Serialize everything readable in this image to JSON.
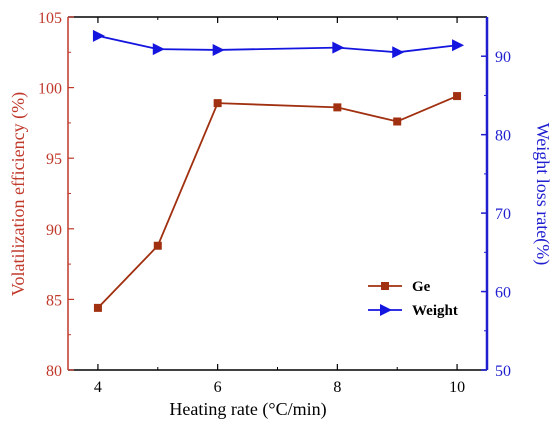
{
  "chart_data": {
    "type": "line",
    "x": [
      4,
      5,
      6,
      8,
      9,
      10
    ],
    "xlabel": "Heating rate (°C/min)",
    "xlim": [
      3.5,
      10.5
    ],
    "xticks": [
      4,
      6,
      8,
      10
    ],
    "y_left": {
      "label": "Volatilization efficiency (%)",
      "lim": [
        80,
        105
      ],
      "ticks": [
        80,
        85,
        90,
        95,
        100,
        105
      ],
      "color": "#c0392b"
    },
    "y_right": {
      "label": "Weight loss rate(%)",
      "lim": [
        50,
        95
      ],
      "ticks": [
        50,
        60,
        70,
        80,
        90
      ],
      "color": "#1f1fd0"
    },
    "series": [
      {
        "name": "Ge",
        "axis": "left",
        "marker": "square",
        "color": "#a0300f",
        "values": [
          84.4,
          88.8,
          98.9,
          98.6,
          97.6,
          99.4
        ]
      },
      {
        "name": "Weight",
        "axis": "right",
        "marker": "triangle-right",
        "color": "#1515e0",
        "values": [
          92.6,
          90.9,
          90.8,
          91.1,
          90.5,
          91.4
        ]
      }
    ],
    "legend_position": "bottom-right",
    "grid": false
  }
}
